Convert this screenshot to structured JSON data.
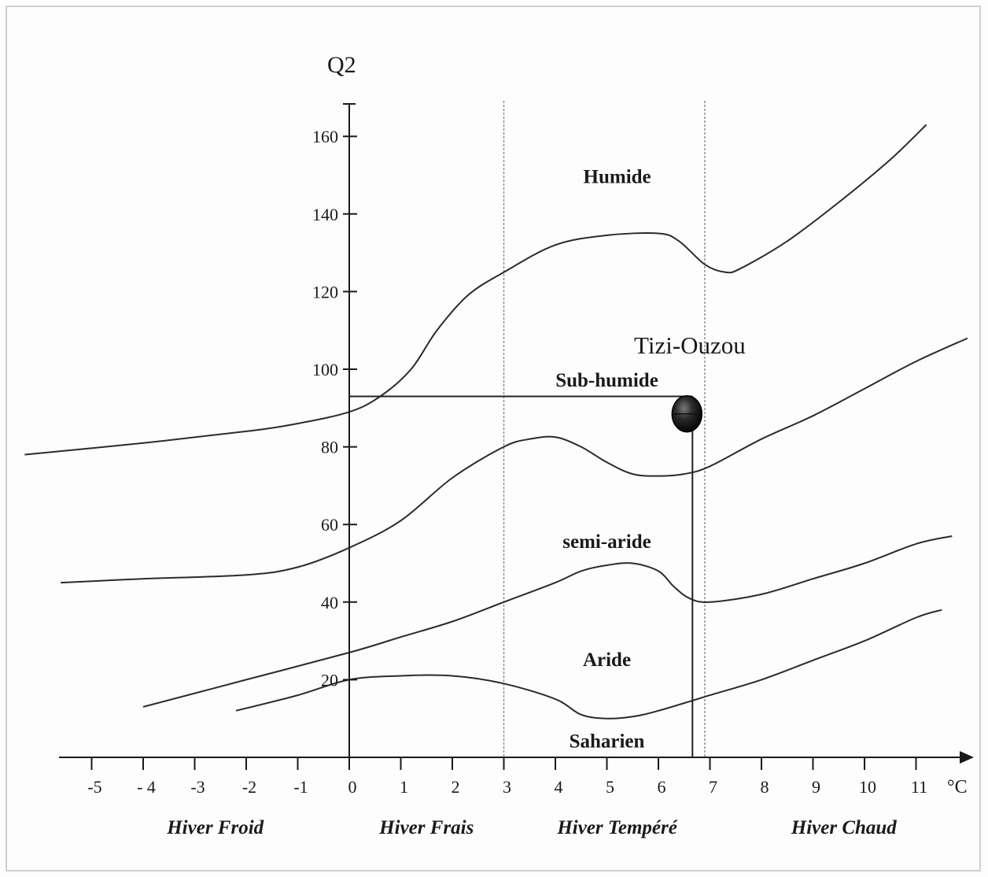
{
  "chart_data": {
    "type": "line",
    "ylabel": "Q2",
    "xunit": "°C",
    "yticks": [
      20,
      40,
      60,
      80,
      100,
      120,
      140,
      160
    ],
    "xticks": [
      {
        "v": -5,
        "label": "-5"
      },
      {
        "v": -4,
        "label": "- 4"
      },
      {
        "v": -3,
        "label": "-3"
      },
      {
        "v": -2,
        "label": "-2"
      },
      {
        "v": -1,
        "label": "-1"
      },
      {
        "v": 0,
        "label": "0"
      },
      {
        "v": 1,
        "label": "1"
      },
      {
        "v": 2,
        "label": "2"
      },
      {
        "v": 3,
        "label": "3"
      },
      {
        "v": 4,
        "label": "4"
      },
      {
        "v": 5,
        "label": "5"
      },
      {
        "v": 6,
        "label": "6"
      },
      {
        "v": 7,
        "label": "7"
      },
      {
        "v": 8,
        "label": "8"
      },
      {
        "v": 9,
        "label": "9"
      },
      {
        "v": 10,
        "label": "10"
      },
      {
        "v": 11,
        "label": "11"
      }
    ],
    "xlim": [
      -6.3,
      11.9
    ],
    "ylim": [
      0,
      168
    ],
    "dividers": [
      3,
      6.9
    ],
    "series": [
      {
        "id": "humide-limit",
        "points": [
          [
            -6.3,
            78
          ],
          [
            -4,
            81
          ],
          [
            -2,
            84
          ],
          [
            -1,
            86
          ],
          [
            0,
            89
          ],
          [
            0.6,
            93
          ],
          [
            1.2,
            100
          ],
          [
            1.7,
            110
          ],
          [
            2.3,
            119
          ],
          [
            3,
            125
          ],
          [
            4,
            132
          ],
          [
            5,
            134.5
          ],
          [
            6,
            135
          ],
          [
            6.4,
            133
          ],
          [
            6.9,
            127
          ],
          [
            7.3,
            125
          ],
          [
            7.6,
            126
          ],
          [
            8.5,
            133
          ],
          [
            9.5,
            143
          ],
          [
            10.5,
            154
          ],
          [
            11.2,
            163
          ]
        ]
      },
      {
        "id": "subhumide-limit",
        "points": [
          [
            -5.6,
            45
          ],
          [
            -4,
            46
          ],
          [
            -2,
            47
          ],
          [
            -1,
            49
          ],
          [
            0,
            54
          ],
          [
            1,
            61
          ],
          [
            2,
            72
          ],
          [
            3,
            80
          ],
          [
            3.5,
            82
          ],
          [
            4,
            82.5
          ],
          [
            4.5,
            80
          ],
          [
            5,
            76
          ],
          [
            5.5,
            73
          ],
          [
            6,
            72.5
          ],
          [
            6.5,
            73
          ],
          [
            7,
            75
          ],
          [
            8,
            82
          ],
          [
            9,
            88
          ],
          [
            10,
            95
          ],
          [
            11,
            102
          ],
          [
            12,
            108
          ]
        ]
      },
      {
        "id": "semiaride-limit",
        "points": [
          [
            -4,
            13
          ],
          [
            -2,
            20
          ],
          [
            0,
            27
          ],
          [
            1,
            31
          ],
          [
            2,
            35
          ],
          [
            3,
            40
          ],
          [
            4,
            45
          ],
          [
            4.5,
            48
          ],
          [
            5,
            49.5
          ],
          [
            5.5,
            50
          ],
          [
            6,
            48
          ],
          [
            6.3,
            44
          ],
          [
            6.6,
            41
          ],
          [
            7,
            40
          ],
          [
            8,
            42
          ],
          [
            9,
            46
          ],
          [
            10,
            50
          ],
          [
            11,
            55
          ],
          [
            11.7,
            57
          ]
        ]
      },
      {
        "id": "aride-limit",
        "points": [
          [
            -2.2,
            12
          ],
          [
            -1,
            16
          ],
          [
            0,
            20
          ],
          [
            1,
            21
          ],
          [
            2,
            21
          ],
          [
            3,
            19
          ],
          [
            4,
            15
          ],
          [
            4.5,
            11
          ],
          [
            5,
            10
          ],
          [
            5.5,
            10.5
          ],
          [
            6,
            12
          ],
          [
            7,
            16
          ],
          [
            8,
            20
          ],
          [
            9,
            25
          ],
          [
            10,
            30
          ],
          [
            11,
            36
          ],
          [
            11.5,
            38
          ]
        ]
      }
    ],
    "zones": [
      {
        "label": "Humide",
        "x": 5.2,
        "y": 148
      },
      {
        "label": "Sub-humide",
        "x": 5.0,
        "y": 95.5
      },
      {
        "label": "semi-aride",
        "x": 5.0,
        "y": 54
      },
      {
        "label": "Aride",
        "x": 5.0,
        "y": 23.5
      },
      {
        "label": "Saharien",
        "x": 5.0,
        "y": 2.5
      }
    ],
    "seasons": [
      {
        "label": "Hiver Froid",
        "x": -2.6
      },
      {
        "label": "Hiver Frais",
        "x": 1.5
      },
      {
        "label": "Hiver Tempéré",
        "x": 5.2
      },
      {
        "label": "Hiver Chaud",
        "x": 9.6
      }
    ],
    "station": {
      "label": "Tizi-Ouzou",
      "m": 6.6,
      "q2": 88.5,
      "ref_q2": 93
    }
  }
}
